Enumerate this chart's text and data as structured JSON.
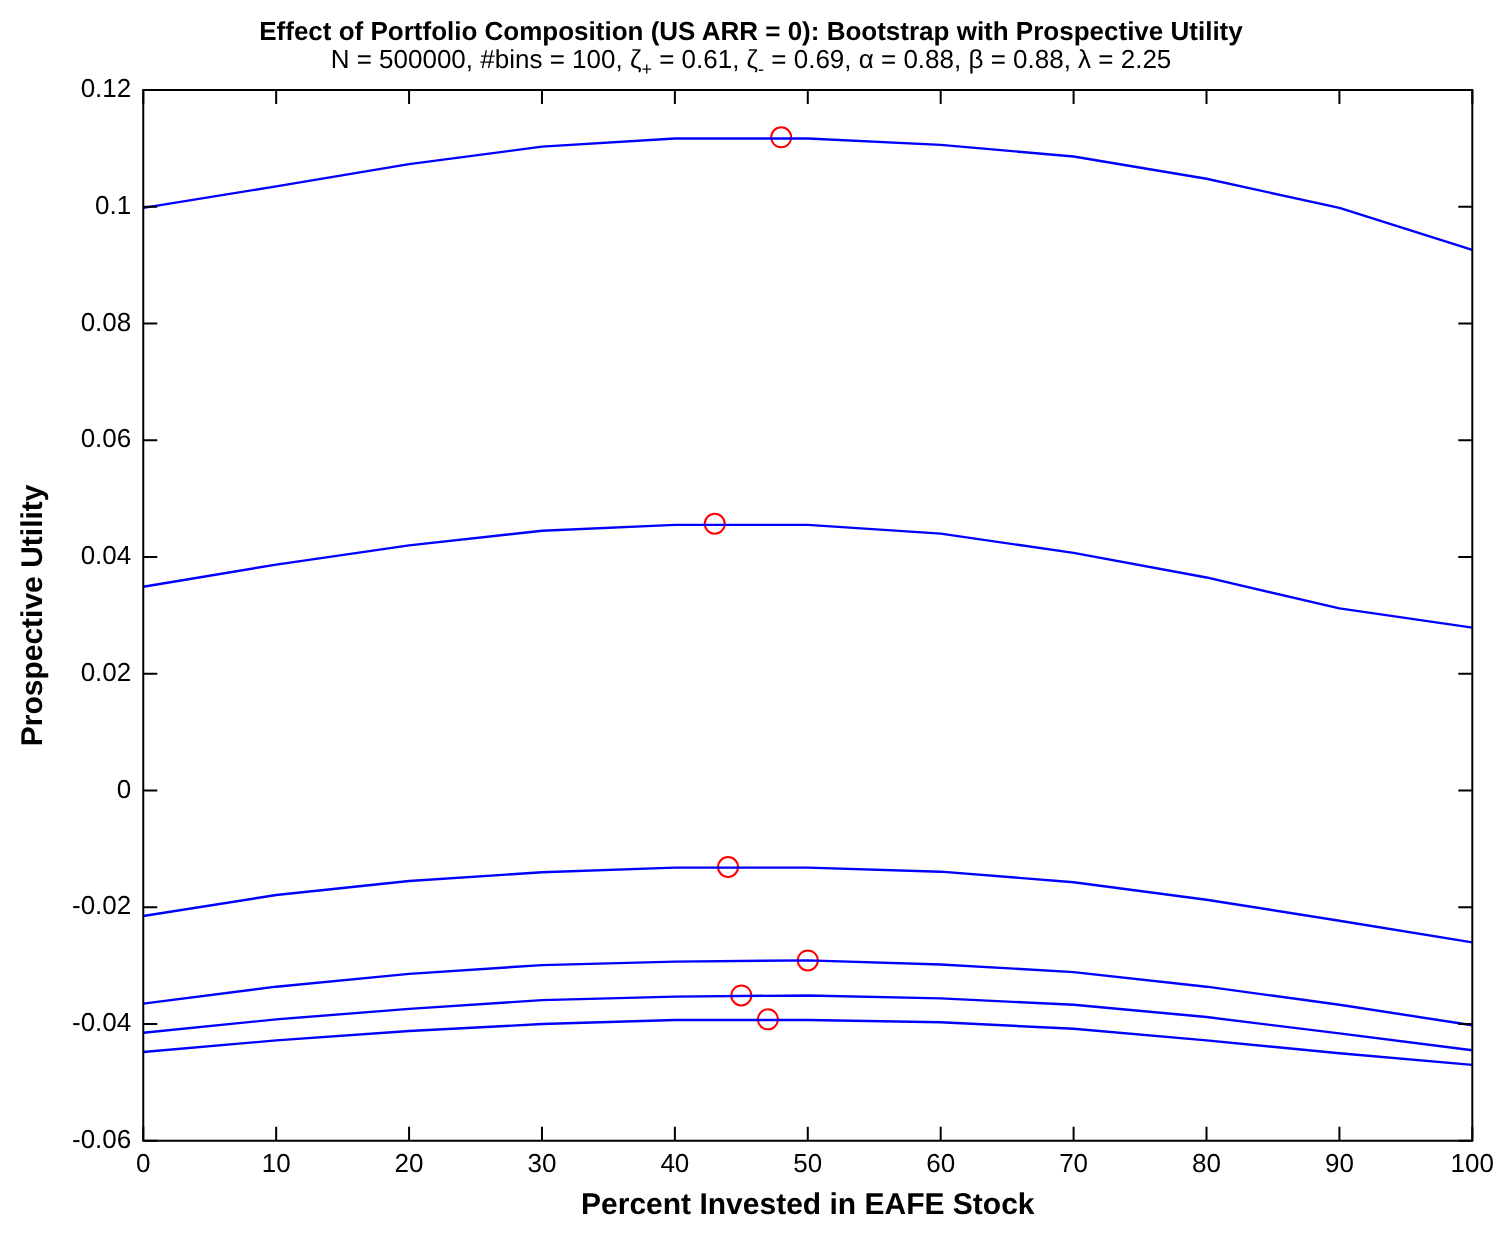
{
  "chart_data": {
    "type": "line",
    "title": "Effect of Portfolio Composition (US ARR = 0): Bootstrap with Prospective Utility",
    "subtitle": "N = 500000, #bins = 100,   ζ$_{+}$ = 0.61,  ζ$_{-}$ = 0.69,  α = 0.88,  β = 0.88,  λ = 2.25",
    "xlabel": "Percent Invested in EAFE Stock",
    "ylabel": "Prospective Utility",
    "x": [
      0,
      10,
      20,
      30,
      40,
      50,
      60,
      70,
      80,
      90,
      100
    ],
    "xlim": [
      0,
      100
    ],
    "xticks": [
      0,
      10,
      20,
      30,
      40,
      50,
      60,
      70,
      80,
      90,
      100
    ],
    "ylim": [
      -0.06,
      0.12
    ],
    "yticks": [
      -0.06,
      -0.04,
      -0.02,
      0,
      0.02,
      0.04,
      0.06,
      0.08,
      0.1,
      0.12
    ],
    "grid": false,
    "legend": false,
    "marker": "none",
    "line_style": "solid",
    "series": [
      {
        "color": "#0000ff",
        "values": [
          0.0998,
          0.1035,
          0.1073,
          0.1103,
          0.1117,
          0.1117,
          0.1106,
          0.1086,
          0.1048,
          0.0998,
          0.0926
        ]
      },
      {
        "color": "#0000ff",
        "values": [
          0.0349,
          0.0387,
          0.042,
          0.0445,
          0.0455,
          0.0455,
          0.044,
          0.0407,
          0.0365,
          0.0312,
          0.0279
        ]
      },
      {
        "color": "#0000ff",
        "values": [
          -0.0215,
          -0.0179,
          -0.0155,
          -0.014,
          -0.0132,
          -0.0132,
          -0.0139,
          -0.0157,
          -0.0187,
          -0.0223,
          -0.026
        ]
      },
      {
        "color": "#0000ff",
        "values": [
          -0.0365,
          -0.0336,
          -0.0314,
          -0.0299,
          -0.0293,
          -0.0291,
          -0.0298,
          -0.0311,
          -0.0336,
          -0.0367,
          -0.0402
        ]
      },
      {
        "color": "#0000ff",
        "values": [
          -0.0415,
          -0.0392,
          -0.0374,
          -0.0359,
          -0.0353,
          -0.0351,
          -0.0356,
          -0.0367,
          -0.0388,
          -0.0416,
          -0.0445
        ]
      },
      {
        "color": "#0000ff",
        "values": [
          -0.0448,
          -0.0428,
          -0.0412,
          -0.04,
          -0.0393,
          -0.0393,
          -0.0397,
          -0.0408,
          -0.0428,
          -0.045,
          -0.047
        ]
      },
      {
        "type": "scatter",
        "marker": "circle",
        "color": "#ff0000",
        "x": [
          48,
          43,
          44,
          50,
          45,
          47
        ],
        "values": [
          0.1119,
          0.0457,
          -0.0131,
          -0.0291,
          -0.0351,
          -0.0392
        ]
      }
    ]
  }
}
